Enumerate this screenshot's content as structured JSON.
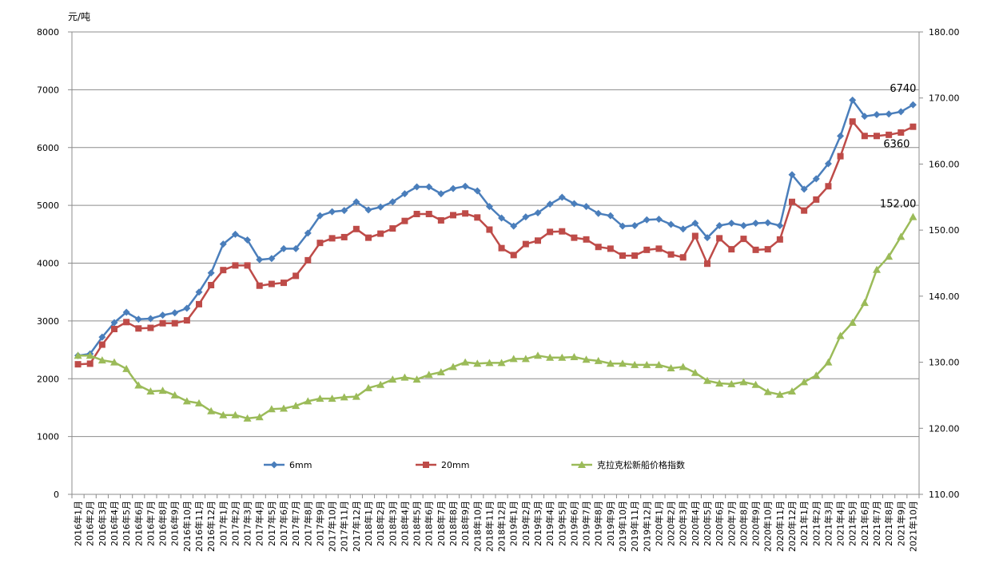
{
  "chart_data": {
    "type": "line",
    "left_unit_label": "元/吨",
    "left_axis": {
      "min": 0,
      "max": 8000,
      "ticks": [
        "0",
        "1000",
        "2000",
        "3000",
        "4000",
        "5000",
        "6000",
        "7000",
        "8000"
      ]
    },
    "right_axis": {
      "min": 110,
      "max": 180,
      "ticks": [
        "110.00",
        "120.00",
        "130.00",
        "140.00",
        "150.00",
        "160.00",
        "170.00",
        "180.00"
      ]
    },
    "grid": true,
    "legend_position": "inside-bottom",
    "x": [
      "2016年1月",
      "2016年2月",
      "2016年3月",
      "2016年4月",
      "2016年5月",
      "2016年6月",
      "2016年7月",
      "2016年8月",
      "2016年9月",
      "2016年10月",
      "2016年11月",
      "2016年12月",
      "2017年1月",
      "2017年2月",
      "2017年3月",
      "2017年4月",
      "2017年5月",
      "2017年6月",
      "2017年7月",
      "2017年8月",
      "2017年9月",
      "2017年10月",
      "2017年11月",
      "2017年12月",
      "2018年1月",
      "2018年2月",
      "2018年3月",
      "2018年4月",
      "2018年5月",
      "2018年6月",
      "2018年7月",
      "2018年8月",
      "2018年9月",
      "2018年10月",
      "2018年11月",
      "2018年12月",
      "2019年1月",
      "2019年2月",
      "2019年3月",
      "2019年4月",
      "2019年5月",
      "2019年6月",
      "2019年7月",
      "2019年8月",
      "2019年9月",
      "2019年10月",
      "2019年11月",
      "2019年12月",
      "2020年1月",
      "2020年2月",
      "2020年3月",
      "2020年4月",
      "2020年5月",
      "2020年6月",
      "2020年7月",
      "2020年8月",
      "2020年9月",
      "2020年10月",
      "2020年11月",
      "2020年12月",
      "2021年1月",
      "2021年2月",
      "2021年3月",
      "2021年4月",
      "2021年5月",
      "2021年6月",
      "2021年7月",
      "2021年8月",
      "2021年9月",
      "2021年10月"
    ],
    "series": [
      {
        "name": "6mm",
        "axis": "left",
        "color": "#4a7ebb",
        "marker": "diamond",
        "values": [
          2400,
          2430,
          2720,
          2970,
          3150,
          3030,
          3040,
          3100,
          3140,
          3220,
          3500,
          3830,
          4330,
          4500,
          4400,
          4060,
          4080,
          4250,
          4250,
          4520,
          4820,
          4890,
          4910,
          5060,
          4920,
          4970,
          5060,
          5200,
          5320,
          5320,
          5200,
          5290,
          5330,
          5250,
          4980,
          4780,
          4640,
          4800,
          4870,
          5020,
          5140,
          5030,
          4980,
          4860,
          4820,
          4640,
          4650,
          4750,
          4760,
          4670,
          4590,
          4690,
          4440,
          4650,
          4690,
          4650,
          4690,
          4700,
          4650,
          5530,
          5280,
          5460,
          5720,
          6200,
          6820,
          6540,
          6570,
          6580,
          6620,
          6740
        ]
      },
      {
        "name": "20mm",
        "axis": "left",
        "color": "#be4b48",
        "marker": "square",
        "values": [
          2250,
          2260,
          2590,
          2860,
          2980,
          2870,
          2880,
          2960,
          2960,
          3010,
          3290,
          3620,
          3880,
          3960,
          3960,
          3610,
          3640,
          3660,
          3780,
          4050,
          4350,
          4430,
          4450,
          4590,
          4440,
          4510,
          4600,
          4730,
          4850,
          4850,
          4740,
          4830,
          4860,
          4790,
          4580,
          4260,
          4140,
          4330,
          4390,
          4540,
          4550,
          4440,
          4410,
          4280,
          4250,
          4130,
          4130,
          4230,
          4250,
          4150,
          4100,
          4470,
          3990,
          4430,
          4240,
          4420,
          4230,
          4240,
          4410,
          5060,
          4910,
          5100,
          5330,
          5850,
          6450,
          6200,
          6200,
          6220,
          6260,
          6360
        ]
      },
      {
        "name": "克拉克松新船价格指数",
        "axis": "right",
        "color": "#9bbb59",
        "marker": "triangle",
        "values": [
          131.0,
          131.0,
          130.3,
          130.0,
          129.0,
          126.5,
          125.6,
          125.7,
          125.0,
          124.1,
          123.8,
          122.6,
          122.0,
          122.0,
          121.5,
          121.7,
          122.9,
          123.0,
          123.4,
          124.1,
          124.5,
          124.5,
          124.7,
          124.8,
          126.1,
          126.6,
          127.4,
          127.7,
          127.4,
          128.1,
          128.5,
          129.3,
          130.0,
          129.8,
          129.9,
          129.9,
          130.5,
          130.5,
          131.0,
          130.7,
          130.7,
          130.8,
          130.4,
          130.2,
          129.8,
          129.8,
          129.6,
          129.6,
          129.6,
          129.1,
          129.3,
          128.4,
          127.2,
          126.8,
          126.7,
          127.0,
          126.6,
          125.5,
          125.1,
          125.6,
          127.0,
          128.0,
          130.0,
          134.0,
          136.0,
          139.0,
          144.0,
          146.0,
          149.0,
          152.0
        ]
      }
    ],
    "annotations": [
      "6740",
      "6360",
      "152.00"
    ]
  }
}
